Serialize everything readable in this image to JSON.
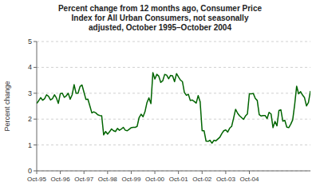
{
  "chart_data": {
    "type": "line",
    "title": "Percent change from 12 months ago, Consumer Price\nIndex for All Urban Consumers, not seasonally\nadjusted, October 1995–October 2004",
    "y_label": "Percent change",
    "color": "#006400",
    "grid": true,
    "ylim": [
      0,
      5
    ],
    "yticks": [
      0,
      1,
      2,
      3,
      4,
      5
    ],
    "categories": [
      "Oct-95",
      null,
      null,
      null,
      null,
      null,
      null,
      null,
      null,
      null,
      null,
      null,
      "Oct-96",
      null,
      null,
      null,
      null,
      null,
      null,
      null,
      null,
      null,
      null,
      null,
      "Oct-97",
      null,
      null,
      null,
      null,
      null,
      null,
      null,
      null,
      null,
      null,
      null,
      "Oct-98",
      null,
      null,
      null,
      null,
      null,
      null,
      null,
      null,
      null,
      null,
      null,
      "Oct-99",
      null,
      null,
      null,
      null,
      null,
      null,
      null,
      null,
      null,
      null,
      null,
      "Oct-00",
      null,
      null,
      null,
      null,
      null,
      null,
      null,
      null,
      null,
      null,
      null,
      "Oct-01",
      null,
      null,
      null,
      null,
      null,
      null,
      null,
      null,
      null,
      null,
      null,
      "Oct-02",
      null,
      null,
      null,
      null,
      null,
      null,
      null,
      null,
      null,
      null,
      null,
      "Oct-03",
      null,
      null,
      null,
      null,
      null,
      null,
      null,
      null,
      null,
      null,
      null,
      "Oct-04",
      null,
      null,
      null,
      null,
      null,
      null,
      null,
      null,
      null,
      null,
      null,
      null,
      null,
      null,
      null,
      null,
      null,
      null,
      null,
      null,
      null,
      null,
      null,
      null,
      null,
      null,
      null,
      null,
      null,
      null,
      null
    ],
    "values": [
      2.61,
      2.71,
      2.83,
      2.73,
      2.79,
      2.94,
      2.88,
      2.74,
      2.79,
      2.94,
      2.82,
      2.61,
      2.99,
      3.0,
      2.84,
      2.9,
      3.0,
      2.77,
      2.94,
      3.33,
      3.0,
      3.0,
      3.26,
      3.32,
      3.04,
      2.76,
      2.77,
      2.51,
      2.24,
      2.28,
      2.24,
      2.17,
      2.14,
      2.13,
      1.39,
      1.52,
      1.42,
      1.51,
      1.62,
      1.55,
      1.52,
      1.64,
      1.57,
      1.62,
      1.68,
      1.57,
      1.55,
      1.61,
      1.67,
      1.68,
      1.68,
      1.72,
      2.06,
      2.19,
      2.09,
      2.29,
      2.64,
      2.82,
      2.6,
      3.8,
      3.55,
      3.73,
      3.66,
      3.42,
      3.48,
      3.73,
      3.7,
      3.56,
      3.69,
      3.67,
      3.45,
      3.76,
      3.63,
      3.51,
      3.45,
      3.03,
      2.92,
      2.96,
      2.72,
      2.74,
      2.68,
      2.62,
      2.91,
      2.67,
      1.55,
      1.55,
      1.15,
      1.14,
      1.18,
      1.07,
      1.18,
      1.16,
      1.23,
      1.3,
      1.44,
      1.55,
      1.58,
      1.5,
      1.65,
      1.72,
      2.04,
      2.38,
      2.23,
      2.13,
      2.06,
      1.99,
      2.12,
      2.2,
      2.98,
      2.98,
      2.99,
      2.8,
      2.72,
      2.17,
      2.12,
      2.14,
      2.14,
      2.02,
      2.26,
      2.2,
      1.67,
      1.91,
      1.74,
      2.33,
      2.36,
      1.92,
      1.95,
      1.69,
      1.67,
      1.8,
      1.97,
      2.56,
      3.27,
      2.98,
      3.06,
      2.93,
      2.83,
      2.51,
      2.64,
      3.09
    ]
  }
}
